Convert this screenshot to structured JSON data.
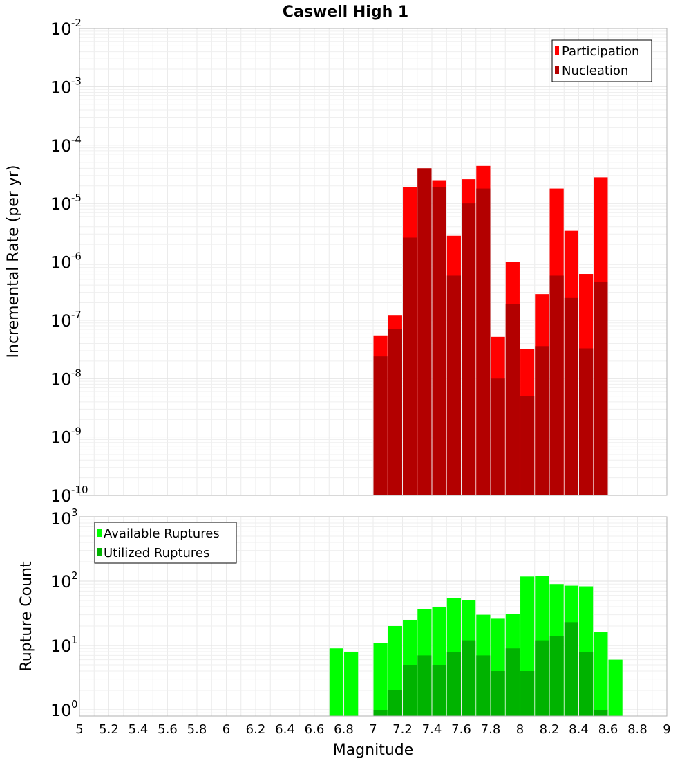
{
  "chart_data": [
    {
      "type": "bar",
      "title": "Caswell High 1",
      "xlabel": "Magnitude",
      "ylabel": "Incremental Rate (per yr)",
      "yscale": "log",
      "xlim": [
        5,
        9
      ],
      "ylim": [
        1e-10,
        0.01
      ],
      "grid": true,
      "legend_position": "top-right",
      "x": [
        7.05,
        7.15,
        7.25,
        7.35,
        7.45,
        7.55,
        7.65,
        7.75,
        7.85,
        7.95,
        8.05,
        8.15,
        8.25,
        8.35,
        8.45,
        8.55
      ],
      "series": [
        {
          "name": "Participation",
          "color": "#ff0000",
          "values": [
            5.5e-08,
            1.2e-07,
            1.9e-05,
            4e-05,
            2.5e-05,
            2.8e-06,
            2.6e-05,
            4.4e-05,
            5.2e-08,
            1e-06,
            3.2e-08,
            2.8e-07,
            1.8e-05,
            3.4e-06,
            6.2e-07,
            2.8e-05
          ]
        },
        {
          "name": "Nucleation",
          "color": "#b30000",
          "values": [
            2.4e-08,
            7e-08,
            2.6e-06,
            4e-05,
            1.9e-05,
            5.8e-07,
            1e-05,
            1.8e-05,
            1e-08,
            1.9e-07,
            5e-09,
            3.6e-08,
            5.8e-07,
            2.4e-07,
            3.3e-08,
            4.6e-07
          ]
        }
      ]
    },
    {
      "type": "bar",
      "title": "",
      "xlabel": "Magnitude",
      "ylabel": "Rupture Count",
      "yscale": "log",
      "xlim": [
        5,
        9
      ],
      "ylim": [
        0.8,
        1000
      ],
      "grid": true,
      "legend_position": "top-left",
      "x": [
        6.75,
        6.85,
        7.05,
        7.15,
        7.25,
        7.35,
        7.45,
        7.55,
        7.65,
        7.75,
        7.85,
        7.95,
        8.05,
        8.15,
        8.25,
        8.35,
        8.45,
        8.55,
        8.65
      ],
      "series": [
        {
          "name": "Available Ruptures",
          "color": "#00ff00",
          "values": [
            9,
            8,
            11,
            20,
            25,
            37,
            40,
            54,
            51,
            30,
            26,
            31,
            118,
            120,
            90,
            85,
            83,
            16,
            6
          ]
        },
        {
          "name": "Utilized Ruptures",
          "color": "#00b300",
          "values": [
            0,
            0,
            1,
            2,
            5,
            7,
            5,
            8,
            12,
            7,
            4,
            9,
            4,
            12,
            14,
            23,
            8,
            1,
            0
          ]
        }
      ]
    }
  ],
  "x_ticks": [
    "5",
    "5.2",
    "5.4",
    "5.6",
    "5.8",
    "6",
    "6.2",
    "6.4",
    "6.6",
    "6.8",
    "7",
    "7.2",
    "7.4",
    "7.6",
    "7.8",
    "8",
    "8.2",
    "8.4",
    "8.6",
    "8.8",
    "9"
  ],
  "top_y_ticks": [
    {
      "base": "10",
      "exp": "-2"
    },
    {
      "base": "10",
      "exp": "-3"
    },
    {
      "base": "10",
      "exp": "-4"
    },
    {
      "base": "10",
      "exp": "-5"
    },
    {
      "base": "10",
      "exp": "-6"
    },
    {
      "base": "10",
      "exp": "-7"
    },
    {
      "base": "10",
      "exp": "-8"
    },
    {
      "base": "10",
      "exp": "-9"
    },
    {
      "base": "10",
      "exp": "-10"
    }
  ],
  "bottom_y_ticks": [
    {
      "base": "10",
      "exp": "3"
    },
    {
      "base": "10",
      "exp": "2"
    },
    {
      "base": "10",
      "exp": "1"
    },
    {
      "base": "10",
      "exp": "0"
    }
  ]
}
